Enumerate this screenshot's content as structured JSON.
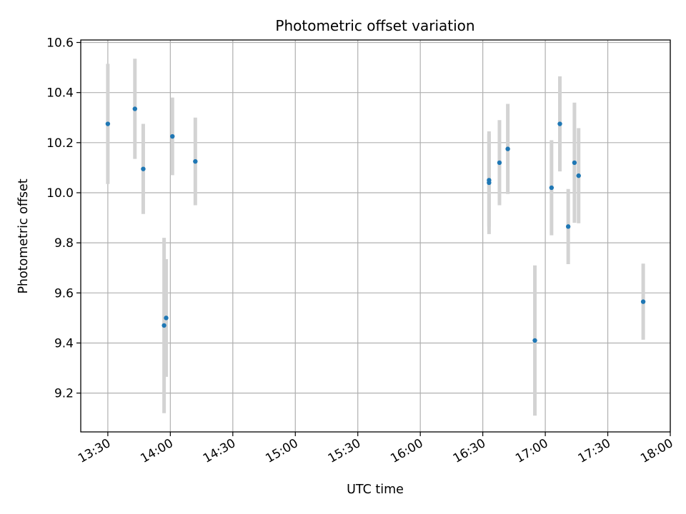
{
  "chart_data": {
    "type": "scatter",
    "title": "Photometric offset variation",
    "xlabel": "UTC time",
    "ylabel": "Photometric offset",
    "grid": true,
    "x_axis_kind": "time",
    "x_range": [
      "13:17",
      "18:00"
    ],
    "x_ticks": [
      "13:30",
      "14:00",
      "14:30",
      "15:00",
      "15:30",
      "16:00",
      "16:30",
      "17:00",
      "17:30",
      "18:00"
    ],
    "ylim": [
      9.045,
      10.61
    ],
    "y_ticks": [
      "9.2",
      "9.4",
      "9.6",
      "9.8",
      "10.0",
      "10.2",
      "10.4",
      "10.6"
    ],
    "marker_color": "#1f77b4",
    "errorbar_color": "#d3d3d3",
    "series": [
      {
        "points": [
          {
            "x": "13:30",
            "y": 10.275,
            "err": 0.24
          },
          {
            "x": "13:43",
            "y": 10.335,
            "err": 0.2
          },
          {
            "x": "13:47",
            "y": 10.095,
            "err": 0.18
          },
          {
            "x": "13:57",
            "y": 9.47,
            "err": 0.35
          },
          {
            "x": "13:58",
            "y": 9.5,
            "err": 0.235
          },
          {
            "x": "14:01",
            "y": 10.225,
            "err": 0.155
          },
          {
            "x": "14:12",
            "y": 10.125,
            "err": 0.175
          },
          {
            "x": "16:33",
            "y": 10.04,
            "err": 0.205
          },
          {
            "x": "16:33",
            "y": 10.05,
            "err": 0.185
          },
          {
            "x": "16:38",
            "y": 10.12,
            "err": 0.17
          },
          {
            "x": "16:42",
            "y": 10.175,
            "err": 0.18
          },
          {
            "x": "16:55",
            "y": 9.41,
            "err": 0.3
          },
          {
            "x": "17:03",
            "y": 10.02,
            "err": 0.19
          },
          {
            "x": "17:07",
            "y": 10.275,
            "err": 0.19
          },
          {
            "x": "17:11",
            "y": 9.865,
            "err": 0.15
          },
          {
            "x": "17:14",
            "y": 10.12,
            "err": 0.24
          },
          {
            "x": "17:16",
            "y": 10.068,
            "err": 0.19
          },
          {
            "x": "17:47",
            "y": 9.565,
            "err": 0.152
          }
        ]
      }
    ]
  }
}
